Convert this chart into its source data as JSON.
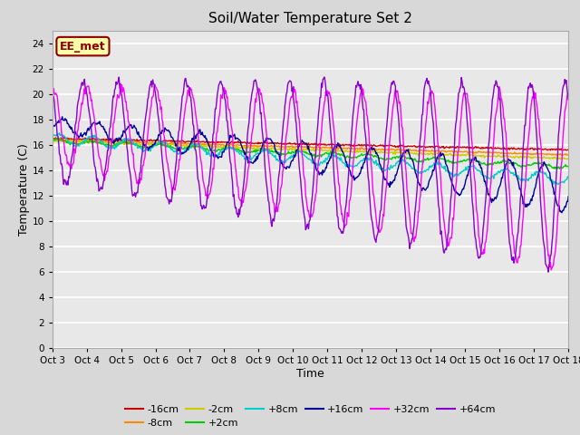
{
  "title": "Soil/Water Temperature Set 2",
  "xlabel": "Time",
  "ylabel": "Temperature (C)",
  "ylim": [
    0,
    25
  ],
  "yticks": [
    0,
    2,
    4,
    6,
    8,
    10,
    12,
    14,
    16,
    18,
    20,
    22,
    24
  ],
  "xtick_labels": [
    "Oct 3",
    "Oct 4",
    "Oct 5",
    "Oct 6",
    "Oct 7",
    "Oct 8",
    "Oct 9",
    "Oct 10",
    "Oct 11",
    "Oct 12",
    "Oct 13",
    "Oct 14",
    "Oct 15",
    "Oct 16",
    "Oct 17",
    "Oct 18"
  ],
  "annotation_text": "EE_met",
  "bg_color": "#d8d8d8",
  "plot_bg_color": "#e8e8e8",
  "series_colors": {
    "-16cm": "#cc0000",
    "-8cm": "#ff8800",
    "-2cm": "#cccc00",
    "+2cm": "#00cc00",
    "+8cm": "#00cccc",
    "+16cm": "#000099",
    "+32cm": "#ff00ff",
    "+64cm": "#8800cc"
  },
  "legend_order": [
    "-16cm",
    "-8cm",
    "-2cm",
    "+2cm",
    "+8cm",
    "+16cm",
    "+32cm",
    "+64cm"
  ]
}
